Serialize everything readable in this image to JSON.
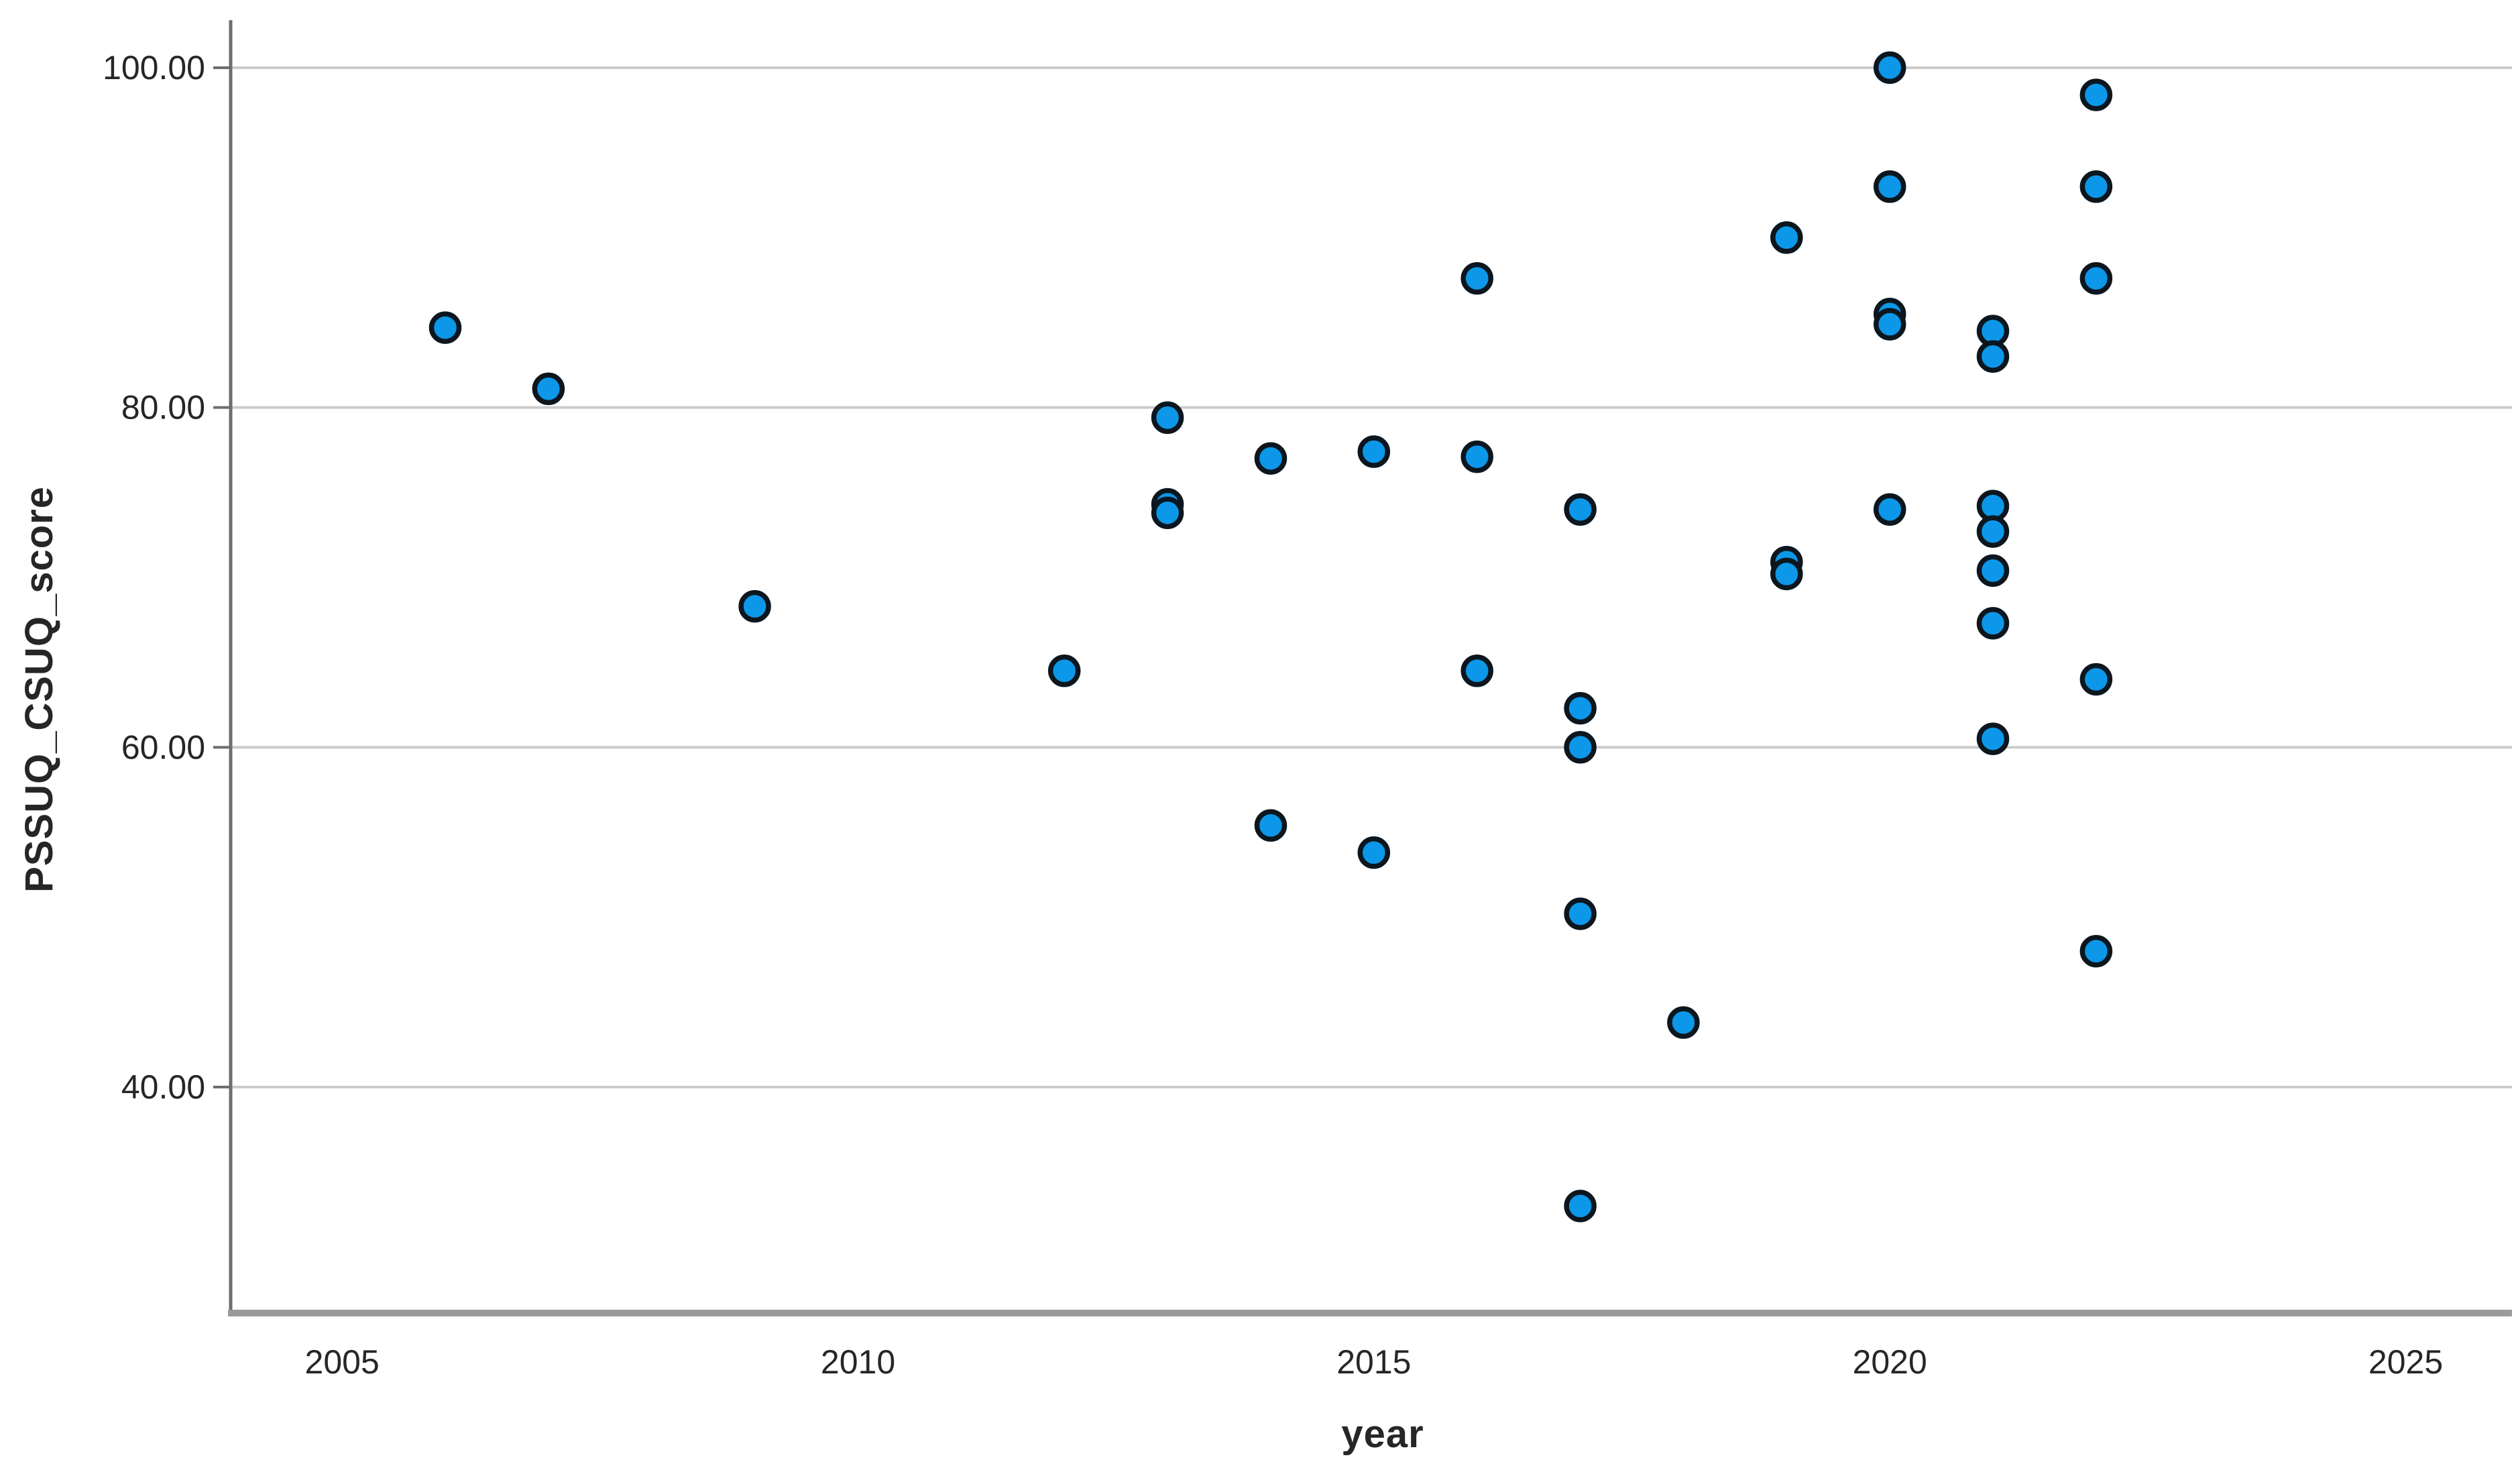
{
  "chart_data": {
    "type": "scatter",
    "title": "",
    "xlabel": "year",
    "ylabel": "PSSUQ_CSUQ_score",
    "x_ticks": [
      2005,
      2010,
      2015,
      2020,
      2025
    ],
    "x_tick_labels": [
      "2005",
      "2010",
      "2015",
      "2020",
      "2025"
    ],
    "y_ticks": [
      40,
      60,
      80,
      100
    ],
    "y_tick_labels": [
      "40.00",
      "60.00",
      "80.00",
      "100.00"
    ],
    "xlim": [
      2003.92,
      2026.03
    ],
    "ylim": [
      26.7,
      102.8
    ],
    "grid": "horizontal-only",
    "legend": "none",
    "series": [
      {
        "name": "PSSUQ_CSUQ_score",
        "points": [
          [
            2006,
            84.7
          ],
          [
            2007,
            81.1
          ],
          [
            2009,
            68.3
          ],
          [
            2012,
            64.5
          ],
          [
            2013,
            79.4
          ],
          [
            2013,
            74.3
          ],
          [
            2013,
            73.8
          ],
          [
            2014,
            77.0
          ],
          [
            2014,
            55.4
          ],
          [
            2015,
            77.4
          ],
          [
            2015,
            53.8
          ],
          [
            2016,
            87.6
          ],
          [
            2016,
            77.1
          ],
          [
            2016,
            64.5
          ],
          [
            2017,
            74.0
          ],
          [
            2017,
            62.3
          ],
          [
            2017,
            60.0
          ],
          [
            2017,
            50.2
          ],
          [
            2017,
            33.0
          ],
          [
            2018,
            43.8
          ],
          [
            2019,
            90.0
          ],
          [
            2019,
            70.9
          ],
          [
            2019,
            70.2
          ],
          [
            2020,
            100.0
          ],
          [
            2020,
            93.0
          ],
          [
            2020,
            85.5
          ],
          [
            2020,
            84.9
          ],
          [
            2020,
            74.0
          ],
          [
            2021,
            84.5
          ],
          [
            2021,
            83.0
          ],
          [
            2021,
            74.2
          ],
          [
            2021,
            72.7
          ],
          [
            2021,
            70.4
          ],
          [
            2021,
            67.3
          ],
          [
            2021,
            60.5
          ],
          [
            2022,
            98.4
          ],
          [
            2022,
            93.0
          ],
          [
            2022,
            87.6
          ],
          [
            2022,
            64.0
          ],
          [
            2022,
            48.0
          ]
        ]
      }
    ]
  },
  "style": {
    "background": "#ffffff",
    "marker_fill": "#0d97e8",
    "marker_stroke": "#0c161e",
    "grid_color": "#cbcbcb",
    "y_axis_color": "#6e6e6e",
    "x_axis_color": "#9a9a9a",
    "tick_color": "#6e6e6e",
    "text_color": "#262626"
  }
}
